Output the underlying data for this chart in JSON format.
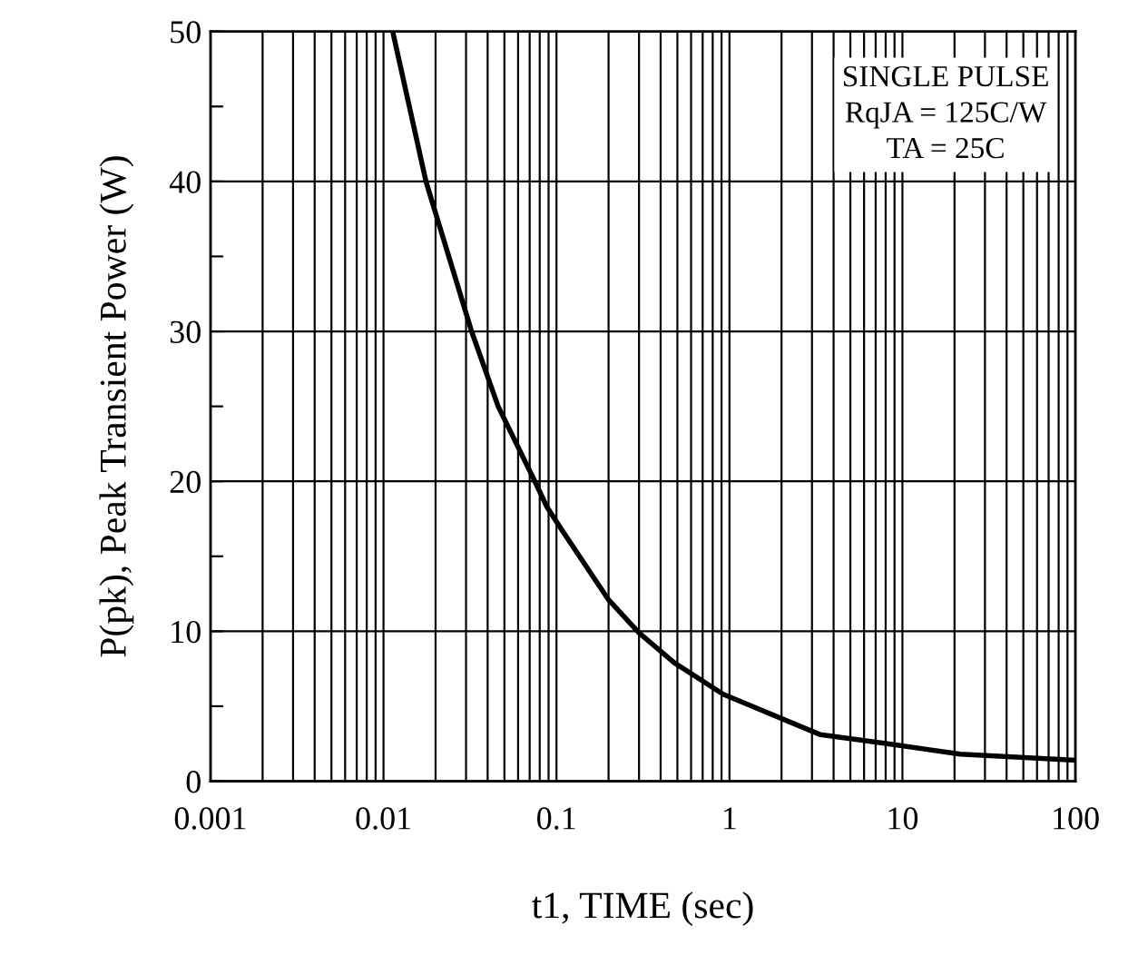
{
  "chart_data": {
    "type": "line",
    "xlabel": "t1, TIME (sec)",
    "ylabel": "P(pk), Peak Transient Power (W)",
    "annotations": [
      "SINGLE PULSE",
      "RqJA = 125C/W",
      "TA = 25C"
    ],
    "series": [
      {
        "color": "#000000",
        "x": [
          0.0113,
          0.0176,
          0.0323,
          0.046,
          0.075,
          0.088,
          0.104,
          0.2,
          0.3,
          0.48,
          0.92,
          3.36,
          8.2,
          21.6,
          100
        ],
        "values": [
          50,
          40,
          30,
          25,
          20,
          18.3,
          17,
          12.1,
          9.9,
          7.9,
          5.8,
          3.1,
          2.5,
          1.8,
          1.4
        ]
      }
    ],
    "log": "x",
    "xlim": [
      0.001,
      100
    ],
    "ylim": [
      0,
      50
    ],
    "xticks": [
      0.001,
      0.01,
      0.1,
      1,
      10,
      100
    ],
    "yticks": [
      0,
      {
        "value": 5,
        "label": null
      },
      10,
      {
        "value": 15,
        "label": null
      },
      20,
      {
        "value": 25,
        "label": null
      },
      30,
      {
        "value": 35,
        "label": null
      },
      40,
      {
        "value": 45,
        "label": null
      },
      50
    ],
    "grid": true,
    "legend": false,
    "marker": "none",
    "line_style": "solid"
  }
}
